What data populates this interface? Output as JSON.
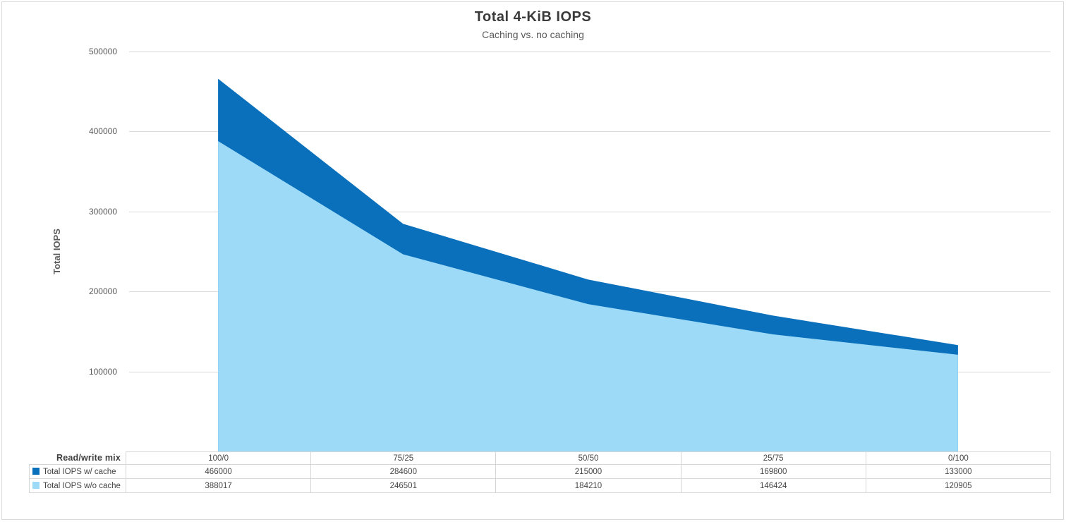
{
  "chart_data": {
    "type": "area",
    "title": "Total 4-KiB IOPS",
    "subtitle": "Caching vs. no caching",
    "ylabel": "Total IOPS",
    "xlabel": "Read/write mix",
    "categories": [
      "100/0",
      "75/25",
      "50/50",
      "25/75",
      "0/100"
    ],
    "series": [
      {
        "name": "Total IOPS w/ cache",
        "color": "#0A70BB",
        "values": [
          466000,
          284600,
          215000,
          169800,
          133000
        ]
      },
      {
        "name": "Total IOPS w/o cache",
        "color": "#9CDAF7",
        "values": [
          388017,
          246501,
          184210,
          146424,
          120905
        ]
      }
    ],
    "ylim": [
      0,
      500000
    ],
    "yticks": [
      500000,
      400000,
      300000,
      200000,
      100000
    ],
    "grid": true,
    "gridline_color": "#D9D9D9",
    "legend_position": "data-table-left",
    "data_table": true
  }
}
